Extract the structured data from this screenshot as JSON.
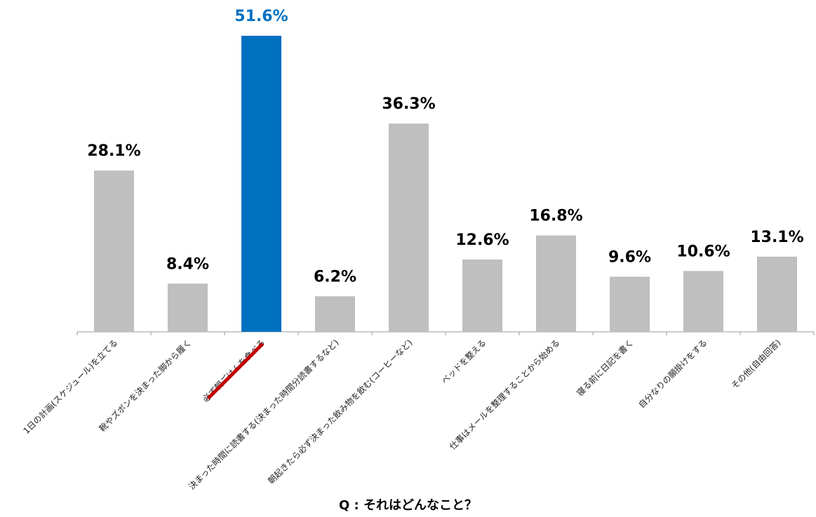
{
  "chart_data": {
    "type": "bar",
    "categories": [
      "1日の計画(スケジュール)を立てる",
      "靴やズボンを決まった脚から履く",
      "必ず朝ごはんを食べる",
      "決まった時間に読書する(決まった時間分読書するなど)",
      "朝起きたら必ず決まった飲み物を飲む(コーヒーなど)",
      "ベッドを整える",
      "仕事はメールを整理することから始める",
      "寝る前に日記を書く",
      "自分なりの願掛けをする",
      "その他(自由回答)"
    ],
    "values": [
      28.1,
      8.4,
      51.6,
      6.2,
      36.3,
      12.6,
      16.8,
      9.6,
      10.6,
      13.1
    ],
    "value_labels": [
      "28.1%",
      "8.4%",
      "51.6%",
      "6.2%",
      "36.3%",
      "12.6%",
      "16.8%",
      "9.6%",
      "10.6%",
      "13.1%"
    ],
    "highlight_index": 2,
    "ylim": [
      0,
      51.6
    ],
    "grid": false,
    "colors": {
      "bar": "#bfbfbf",
      "highlight": "#0070c0",
      "underline": "#c00000",
      "axis": "#999999",
      "label": "#000000"
    }
  },
  "caption": "Q : それはどんなこと？"
}
